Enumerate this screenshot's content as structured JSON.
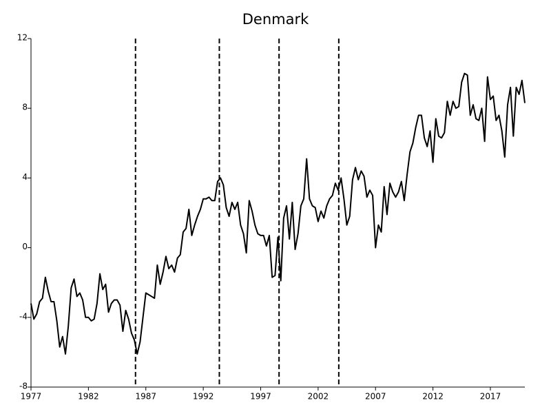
{
  "chart_data": {
    "type": "line",
    "title": "Denmark",
    "x": [
      1977,
      1977.25,
      1977.5,
      1977.75,
      1978,
      1978.25,
      1978.5,
      1978.75,
      1979,
      1979.25,
      1979.5,
      1979.75,
      1980,
      1980.25,
      1980.5,
      1980.75,
      1981,
      1981.25,
      1981.5,
      1981.75,
      1982,
      1982.25,
      1982.5,
      1982.75,
      1983,
      1983.25,
      1983.5,
      1983.75,
      1984,
      1984.25,
      1984.5,
      1984.75,
      1985,
      1985.25,
      1985.5,
      1985.75,
      1986,
      1986.25,
      1986.5,
      1986.75,
      1987,
      1987.25,
      1987.5,
      1987.75,
      1988,
      1988.25,
      1988.5,
      1988.75,
      1989,
      1989.25,
      1989.5,
      1989.75,
      1990,
      1990.25,
      1990.5,
      1990.75,
      1991,
      1991.25,
      1991.5,
      1991.75,
      1992,
      1992.25,
      1992.5,
      1992.75,
      1993,
      1993.25,
      1993.5,
      1993.75,
      1994,
      1994.25,
      1994.5,
      1994.75,
      1995,
      1995.25,
      1995.5,
      1995.75,
      1996,
      1996.25,
      1996.5,
      1996.75,
      1997,
      1997.25,
      1997.5,
      1997.75,
      1998,
      1998.25,
      1998.5,
      1998.75,
      1999,
      1999.25,
      1999.5,
      1999.75,
      2000,
      2000.25,
      2000.5,
      2000.75,
      2001,
      2001.25,
      2001.5,
      2001.75,
      2002,
      2002.25,
      2002.5,
      2002.75,
      2003,
      2003.25,
      2003.5,
      2003.75,
      2004,
      2004.25,
      2004.5,
      2004.75,
      2005,
      2005.25,
      2005.5,
      2005.75,
      2006,
      2006.25,
      2006.5,
      2006.75,
      2007,
      2007.25,
      2007.5,
      2007.75,
      2008,
      2008.25,
      2008.5,
      2008.75,
      2009,
      2009.25,
      2009.5,
      2009.75,
      2010,
      2010.25,
      2010.5,
      2010.75,
      2011,
      2011.25,
      2011.5,
      2011.75,
      2012,
      2012.25,
      2012.5,
      2012.75,
      2013,
      2013.25,
      2013.5,
      2013.75,
      2014,
      2014.25,
      2014.5,
      2014.75,
      2015,
      2015.25,
      2015.5,
      2015.75,
      2016,
      2016.25,
      2016.5,
      2016.75,
      2017,
      2017.25,
      2017.5,
      2017.75,
      2018,
      2018.25,
      2018.5,
      2018.75,
      2019,
      2019.25,
      2019.5,
      2019.75,
      2020
    ],
    "values": [
      -3.2,
      -4.1,
      -3.8,
      -3.1,
      -2.9,
      -1.7,
      -2.5,
      -3.1,
      -3.1,
      -4.2,
      -5.7,
      -5.1,
      -6.1,
      -4.5,
      -2.3,
      -1.8,
      -2.8,
      -2.6,
      -3.0,
      -4.0,
      -4.0,
      -4.2,
      -4.1,
      -3.2,
      -1.5,
      -2.4,
      -2.1,
      -3.7,
      -3.2,
      -3.0,
      -3.0,
      -3.3,
      -4.8,
      -3.6,
      -4.1,
      -4.9,
      -5.3,
      -6.1,
      -5.4,
      -4.0,
      -2.6,
      -2.7,
      -2.8,
      -2.9,
      -1.0,
      -2.1,
      -1.4,
      -0.5,
      -1.2,
      -1.0,
      -1.4,
      -0.6,
      -0.4,
      0.9,
      1.1,
      2.2,
      0.7,
      1.3,
      1.8,
      2.2,
      2.8,
      2.8,
      2.9,
      2.7,
      2.7,
      3.8,
      4.0,
      3.6,
      2.3,
      1.8,
      2.6,
      2.2,
      2.6,
      1.3,
      0.8,
      -0.3,
      2.7,
      2.1,
      1.3,
      0.8,
      0.7,
      0.7,
      0.1,
      0.7,
      -1.7,
      -1.6,
      0.6,
      -1.9,
      1.7,
      2.4,
      0.5,
      2.6,
      -0.1,
      0.8,
      2.4,
      2.8,
      5.1,
      2.8,
      2.4,
      2.3,
      1.5,
      2.1,
      1.7,
      2.4,
      2.8,
      3.0,
      3.7,
      3.3,
      4.0,
      2.8,
      1.3,
      1.8,
      3.9,
      4.6,
      3.9,
      4.4,
      4.1,
      2.9,
      3.3,
      3.0,
      0.0,
      1.3,
      0.9,
      3.5,
      1.9,
      3.7,
      3.2,
      2.9,
      3.2,
      3.8,
      2.7,
      4.2,
      5.5,
      6.0,
      6.9,
      7.6,
      7.6,
      6.3,
      5.8,
      6.7,
      4.9,
      7.4,
      6.4,
      6.3,
      6.6,
      8.4,
      7.6,
      8.4,
      8.0,
      8.1,
      9.5,
      10.0,
      9.9,
      7.6,
      8.2,
      7.4,
      7.3,
      8.0,
      6.1,
      9.8,
      8.5,
      8.7,
      7.3,
      7.6,
      6.7,
      5.2,
      8.2,
      9.2,
      6.4,
      9.2,
      8.8,
      9.6,
      8.3
    ],
    "color": "#000000",
    "xlim": [
      1977,
      2020
    ],
    "xticks": [
      1977,
      1982,
      1987,
      1992,
      1997,
      2002,
      2007,
      2012,
      2017
    ],
    "ylim": [
      -8,
      12
    ],
    "yticks": [
      -8,
      -4,
      0,
      4,
      8,
      12
    ],
    "vlines": [
      1986.1,
      1993.4,
      1998.6,
      2003.8
    ],
    "grid": false
  }
}
